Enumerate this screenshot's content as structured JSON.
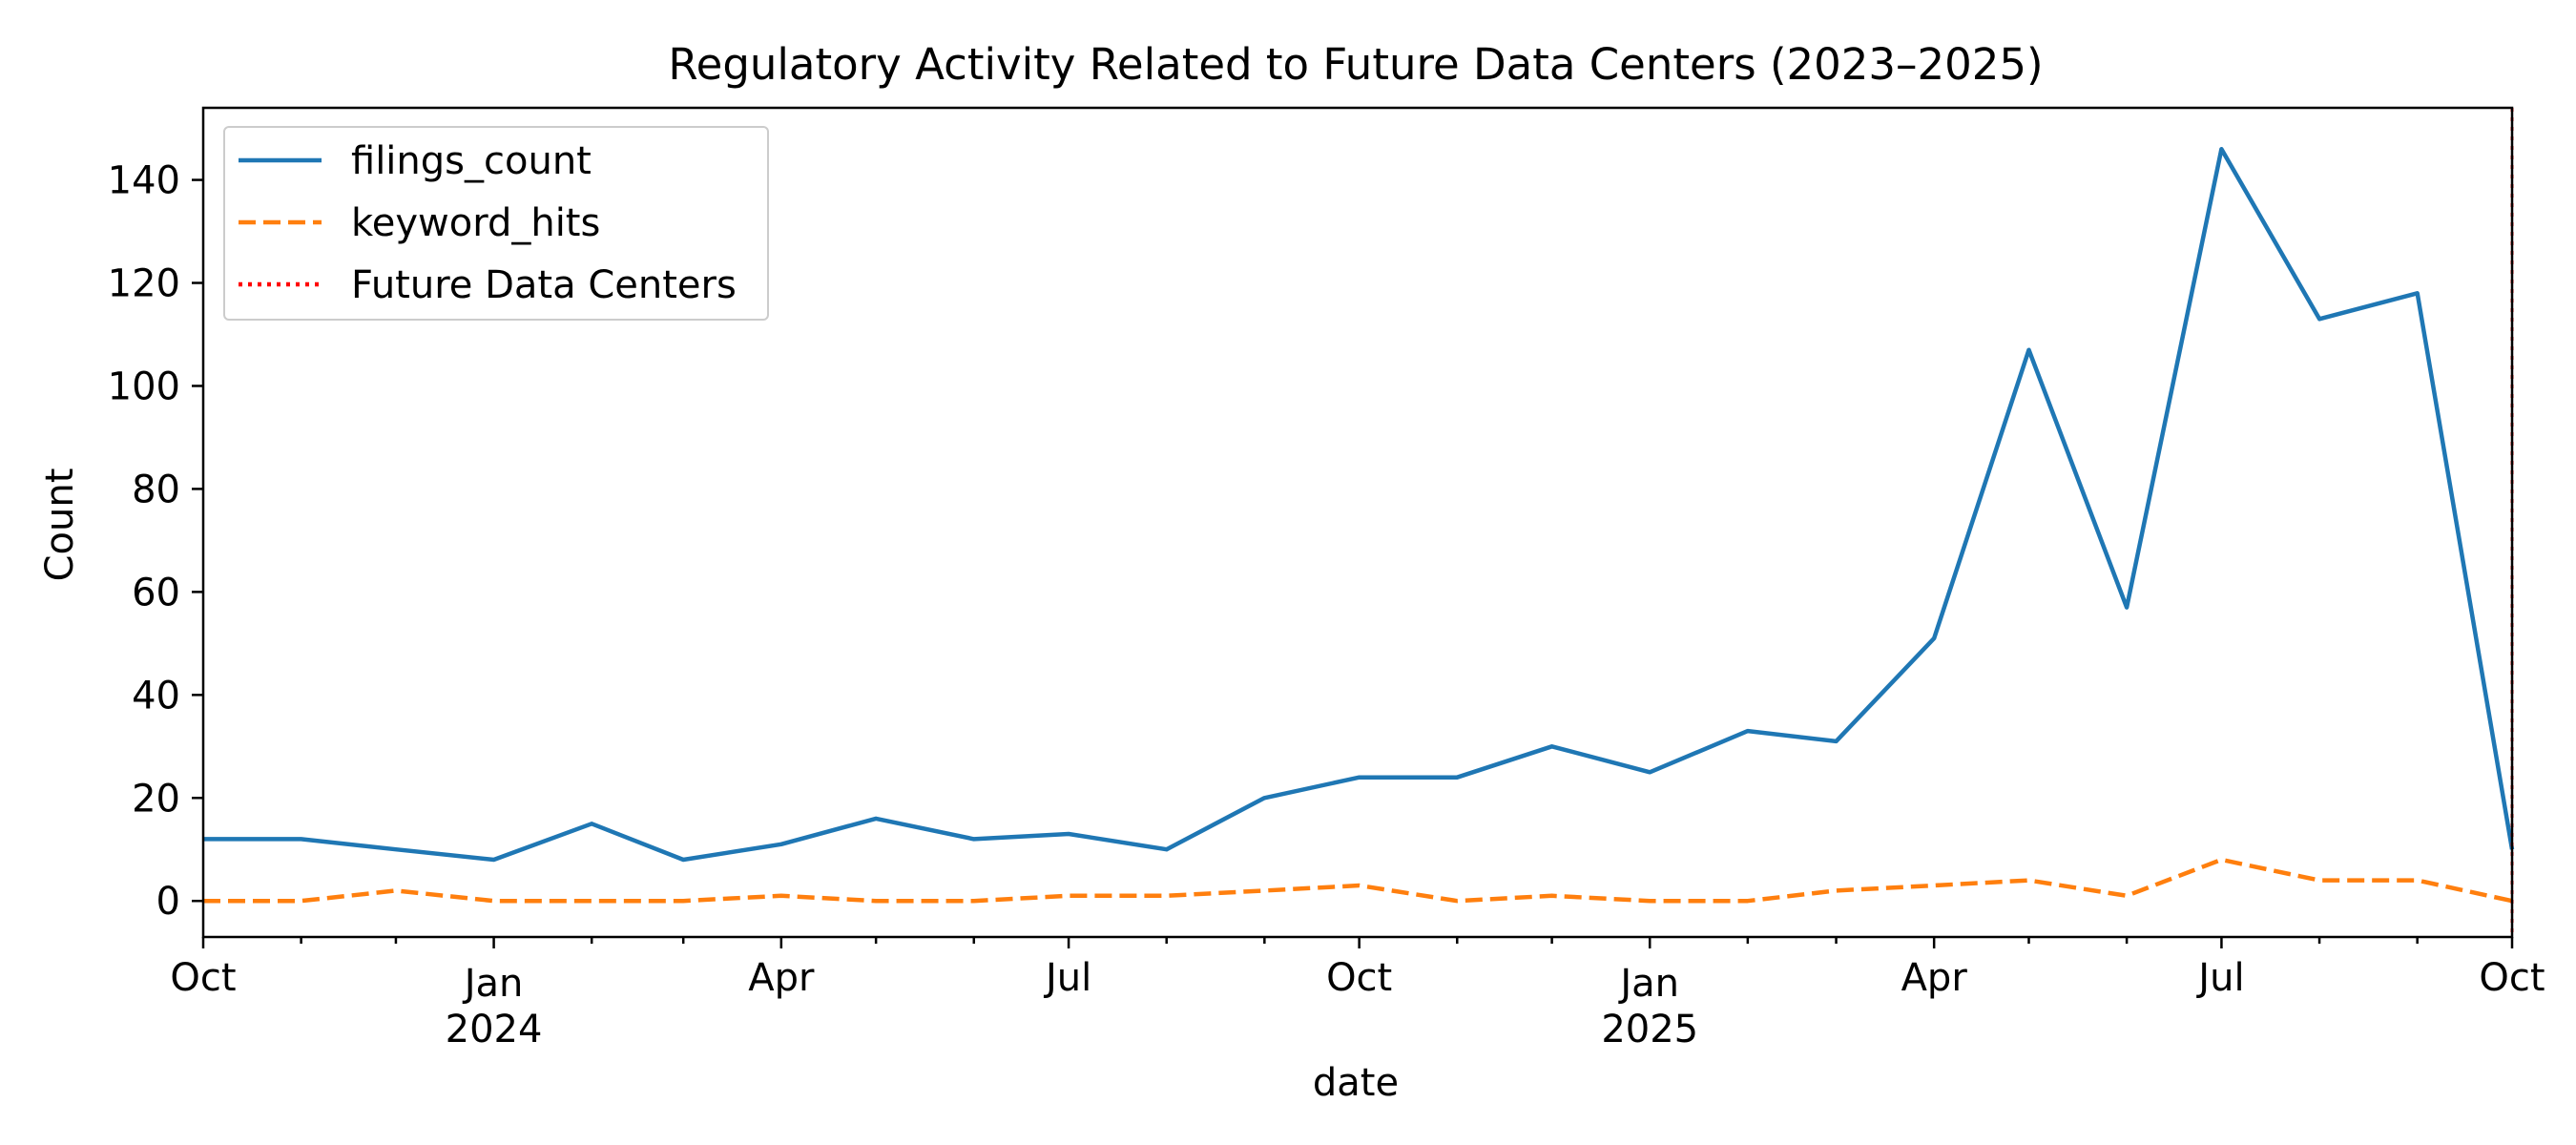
{
  "chart_data": {
    "type": "line",
    "title": "Regulatory Activity Related to Future Data Centers (2023–2025)",
    "xlabel": "date",
    "ylabel": "Count",
    "ylim": [
      -7,
      154
    ],
    "xlim": [
      "2023-10-01",
      "2025-10-01"
    ],
    "yticks": [
      0,
      20,
      40,
      60,
      80,
      100,
      120,
      140
    ],
    "xticks": [
      {
        "date": "2023-10-01",
        "label": "Oct",
        "year": ""
      },
      {
        "date": "2024-01-01",
        "label": "Jan",
        "year": "2024"
      },
      {
        "date": "2024-04-01",
        "label": "Apr",
        "year": ""
      },
      {
        "date": "2024-07-01",
        "label": "Jul",
        "year": ""
      },
      {
        "date": "2024-10-01",
        "label": "Oct",
        "year": ""
      },
      {
        "date": "2025-01-01",
        "label": "Jan",
        "year": "2025"
      },
      {
        "date": "2025-04-01",
        "label": "Apr",
        "year": ""
      },
      {
        "date": "2025-07-01",
        "label": "Jul",
        "year": ""
      },
      {
        "date": "2025-10-01",
        "label": "Oct",
        "year": ""
      }
    ],
    "grid": false,
    "legend_position": "upper left",
    "dates": [
      "2023-10-01",
      "2023-11-01",
      "2023-12-01",
      "2024-01-01",
      "2024-02-01",
      "2024-03-01",
      "2024-04-01",
      "2024-05-01",
      "2024-06-01",
      "2024-07-01",
      "2024-08-01",
      "2024-09-01",
      "2024-10-01",
      "2024-11-01",
      "2024-12-01",
      "2025-01-01",
      "2025-02-01",
      "2025-03-01",
      "2025-04-01",
      "2025-05-01",
      "2025-06-01",
      "2025-07-01",
      "2025-08-01",
      "2025-09-01",
      "2025-10-01"
    ],
    "series": [
      {
        "name": "filings_count",
        "color": "#1f77b4",
        "style": "solid",
        "values": [
          12,
          12,
          10,
          8,
          15,
          8,
          11,
          16,
          12,
          13,
          10,
          20,
          24,
          24,
          30,
          25,
          33,
          31,
          51,
          107,
          57,
          146,
          113,
          118,
          10
        ]
      },
      {
        "name": "keyword_hits",
        "color": "#ff7f0e",
        "style": "dashed",
        "values": [
          0,
          0,
          2,
          0,
          0,
          0,
          1,
          0,
          0,
          1,
          1,
          2,
          3,
          0,
          1,
          0,
          0,
          2,
          3,
          4,
          1,
          8,
          4,
          4,
          0
        ]
      }
    ],
    "annotations": [
      {
        "type": "vline",
        "name": "Future Data Centers",
        "date": "2025-10-01",
        "color": "#ff0000",
        "style": "dotted"
      }
    ]
  }
}
